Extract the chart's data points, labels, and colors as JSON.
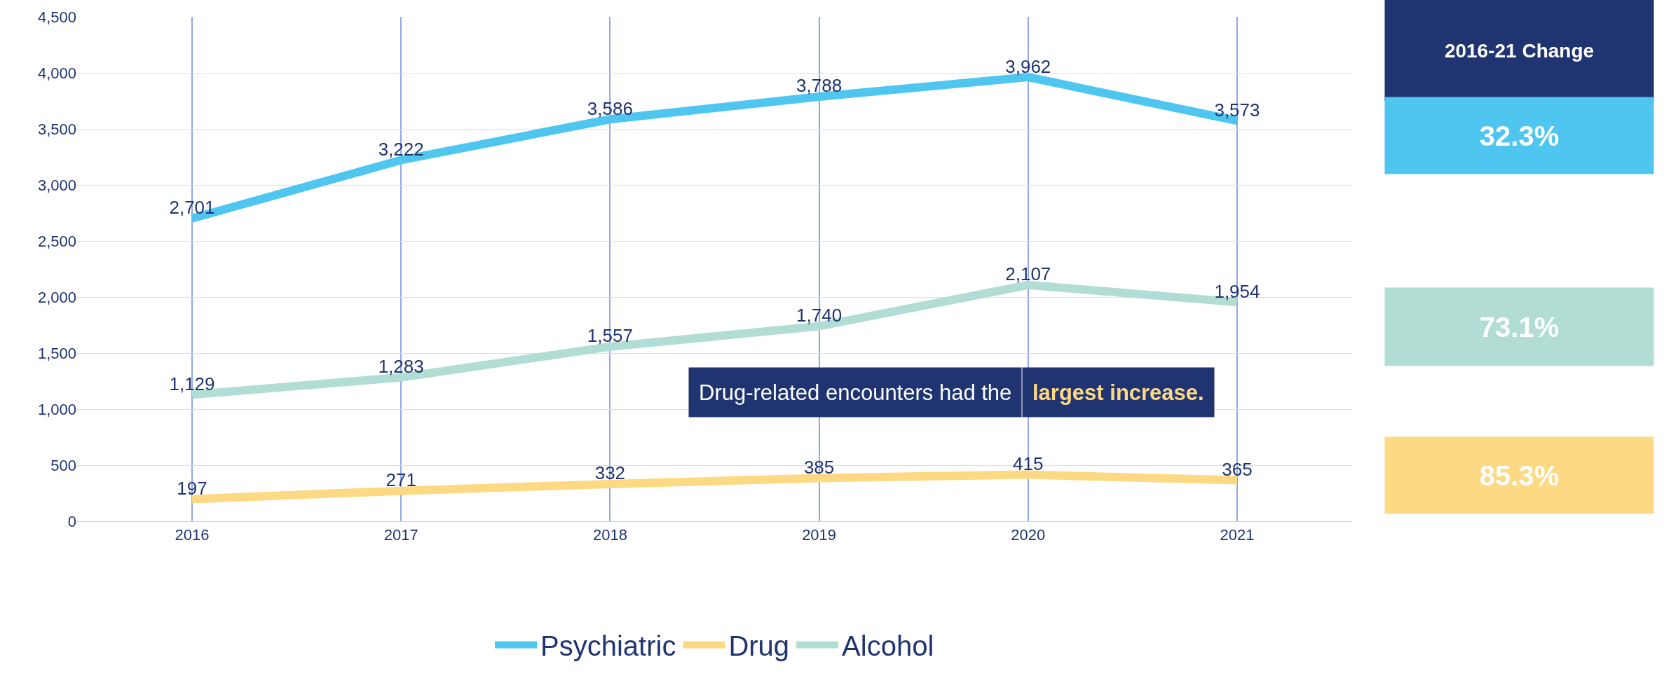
{
  "chart_data": {
    "type": "line",
    "categories": [
      "2016",
      "2017",
      "2018",
      "2019",
      "2020",
      "2021"
    ],
    "series": [
      {
        "name": "Psychiatric",
        "color": "#4ec6ef",
        "values": [
          2701,
          3222,
          3586,
          3788,
          3962,
          3573
        ],
        "value_labels": [
          "2,701",
          "3,222",
          "3,586",
          "3,788",
          "3,962",
          "3,573"
        ]
      },
      {
        "name": "Drug",
        "color": "#fdd984",
        "values": [
          197,
          271,
          332,
          385,
          415,
          365
        ],
        "value_labels": [
          "197",
          "271",
          "332",
          "385",
          "415",
          "365"
        ]
      },
      {
        "name": "Alcohol",
        "color": "#b2ddd4",
        "values": [
          1129,
          1283,
          1557,
          1740,
          2107,
          1954
        ],
        "value_labels": [
          "1,129",
          "1,283",
          "1,557",
          "1,740",
          "2,107",
          "1,954"
        ]
      }
    ],
    "ylim": [
      0,
      4500
    ],
    "yticks": [
      0,
      500,
      {
        "value": 1000,
        "label": "1,000"
      },
      {
        "value": 1500,
        "label": "1,500"
      },
      {
        "value": 2000,
        "label": "2,000"
      },
      {
        "value": 2500,
        "label": "2,500"
      },
      {
        "value": 3000,
        "label": "3,000"
      },
      {
        "value": 3500,
        "label": "3,500"
      },
      {
        "value": 4000,
        "label": "4,000"
      },
      {
        "value": 4500,
        "label": "4,500"
      }
    ],
    "grid": true,
    "legend": "bottom",
    "marker": "none",
    "line_style": "solid",
    "annotations": [
      "2016-21 Change",
      "32.3%",
      "73.1%",
      "85.3%",
      "Drug-related encounters had the",
      "largest increase."
    ]
  }
}
